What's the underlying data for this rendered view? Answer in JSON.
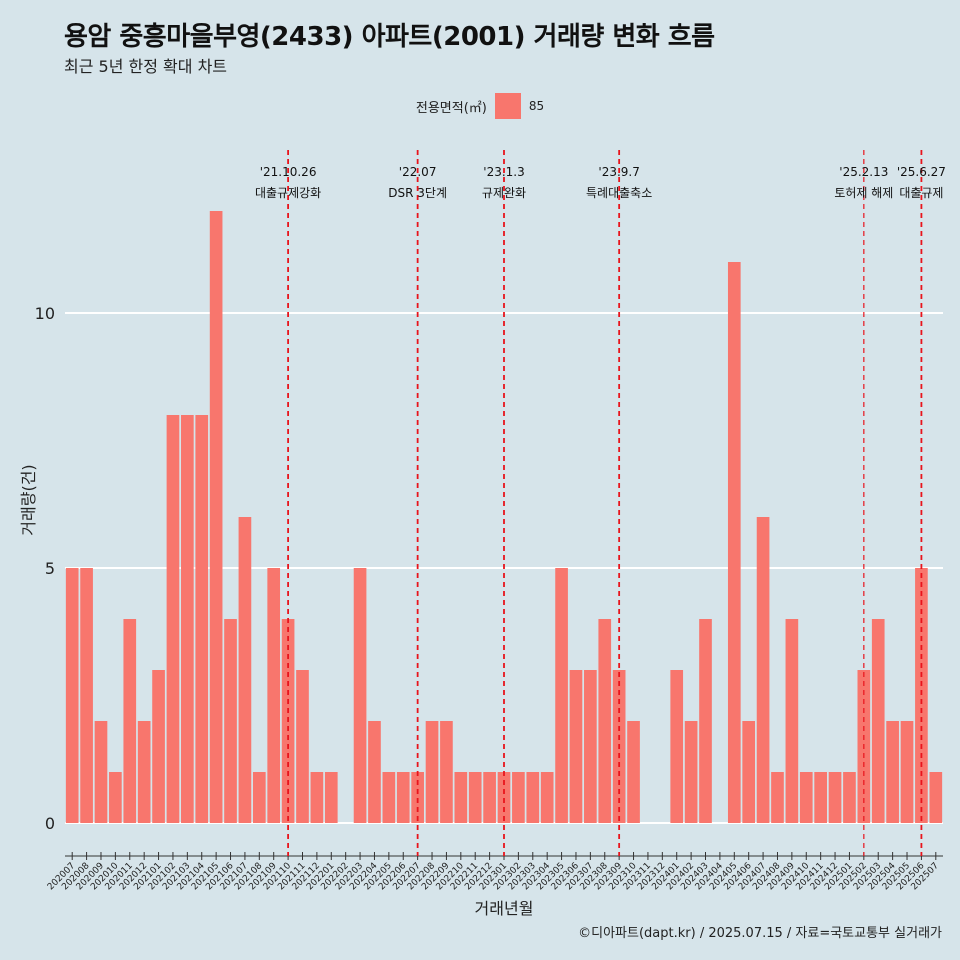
{
  "title": "용암 중흥마을부영(2433) 아파트(2001) 거래량 변화 흐름",
  "subtitle": "최근 5년 한정 확대 차트",
  "legend": {
    "title": "전용면적(㎡)",
    "entries": [
      {
        "label": "85",
        "color": "#f8766d"
      }
    ]
  },
  "caption": "©디아파트(dapt.kr) / 2025.07.15 / 자료=국토교통부 실거래가",
  "chart_data": {
    "type": "bar",
    "xlabel": "거래년월",
    "ylabel": "거래량(건)",
    "ylim": [
      0,
      12
    ],
    "yticks": [
      0,
      5,
      10
    ],
    "grid": "horizontal",
    "legend_position": "top",
    "bar_color": "#f8766d",
    "categories": [
      "202007",
      "202008",
      "202009",
      "202010",
      "202011",
      "202012",
      "202101",
      "202102",
      "202103",
      "202104",
      "202105",
      "202106",
      "202107",
      "202108",
      "202109",
      "202110",
      "202111",
      "202112",
      "202201",
      "202202",
      "202203",
      "202204",
      "202205",
      "202206",
      "202207",
      "202208",
      "202209",
      "202210",
      "202211",
      "202212",
      "202301",
      "202302",
      "202303",
      "202304",
      "202305",
      "202306",
      "202307",
      "202308",
      "202309",
      "202310",
      "202311",
      "202312",
      "202401",
      "202402",
      "202403",
      "202404",
      "202405",
      "202406",
      "202407",
      "202408",
      "202409",
      "202410",
      "202411",
      "202412",
      "202501",
      "202502",
      "202503",
      "202504",
      "202505",
      "202506",
      "202507"
    ],
    "values": [
      5,
      5,
      2,
      1,
      4,
      2,
      3,
      8,
      8,
      8,
      12,
      4,
      6,
      1,
      5,
      4,
      3,
      1,
      1,
      0,
      5,
      2,
      1,
      1,
      1,
      2,
      2,
      1,
      1,
      1,
      1,
      1,
      1,
      1,
      5,
      3,
      3,
      4,
      3,
      2,
      0,
      0,
      3,
      2,
      4,
      0,
      11,
      2,
      6,
      1,
      4,
      1,
      1,
      1,
      1,
      3,
      4,
      2,
      2,
      5,
      1
    ],
    "events": [
      {
        "category": "202110",
        "date": "'21.10.26",
        "label": "대출규제강화",
        "style": "bold"
      },
      {
        "category": "202207",
        "date": "'22.07",
        "label": "DSR 3단계",
        "style": "bold"
      },
      {
        "category": "202301",
        "date": "'23.1.3",
        "label": "규제완화",
        "style": "bold"
      },
      {
        "category": "202309",
        "date": "'23.9.7",
        "label": "특례대출축소",
        "style": "bold"
      },
      {
        "category": "202502",
        "date": "'25.2.13",
        "label": "토허제 해제",
        "style": "thin"
      },
      {
        "category": "202506",
        "date": "'25.6.27",
        "label": "대출규제",
        "style": "bold"
      }
    ]
  }
}
